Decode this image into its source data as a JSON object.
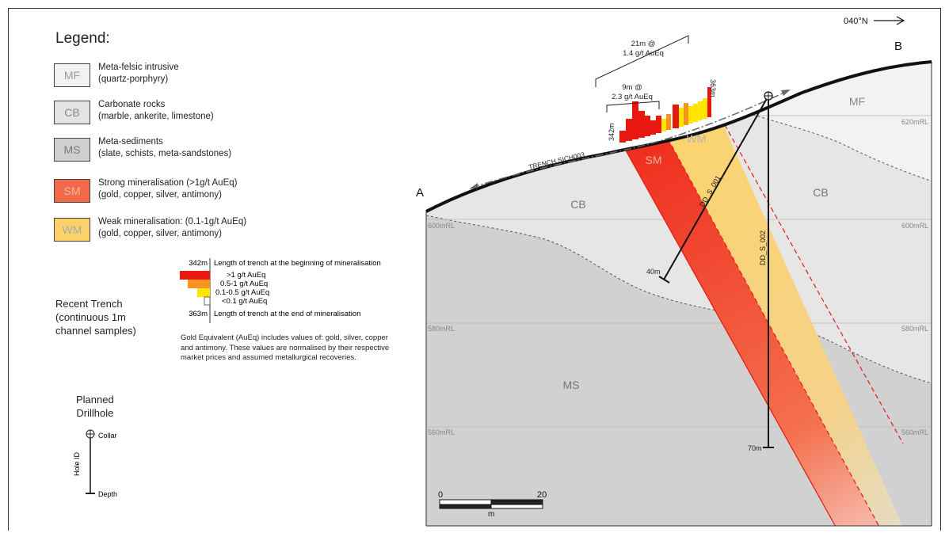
{
  "north_arrow": "040°N",
  "legend": {
    "title": "Legend:",
    "items": [
      {
        "code": "MF",
        "line1": "Meta-felsic intrusive",
        "line2": "(quartz-porphyry)",
        "color": "#f2f2f2",
        "text_color": "#9a9a9a"
      },
      {
        "code": "CB",
        "line1": "Carbonate rocks",
        "line2": "(marble, ankerite, limestone)",
        "color": "#e3e3e3",
        "text_color": "#8a8a8a"
      },
      {
        "code": "MS",
        "line1": "Meta-sediments",
        "line2": "(slate, schists, meta-sandstones)",
        "color": "#cfcfcf",
        "text_color": "#7a7a7a"
      },
      {
        "code": "SM",
        "line1": "Strong mineralisation (>1g/t AuEq)",
        "line2": "(gold, copper, silver, antimony)",
        "color": "#f26a4a",
        "text_color": "#f0b0a0"
      },
      {
        "code": "WM",
        "line1": "Weak mineralisation: (0.1-1g/t AuEq)",
        "line2": "(gold, copper, silver, antimony)",
        "color": "#fbd26a",
        "text_color": "#b0b0b0"
      }
    ]
  },
  "trench_legend": {
    "heading_lines": [
      "Recent Trench",
      "(continuous 1m",
      "channel samples)"
    ],
    "start_value": "342m",
    "start_label": "Length of trench at the beginning of mineralisation",
    "grades": [
      ">1 g/t AuEq",
      "0.5-1 g/t AuEq",
      "0.1-0.5 g/t AuEq",
      "<0.1 g/t AuEq"
    ],
    "grade_colors": [
      "#e8170f",
      "#f7931e",
      "#ffe600",
      "#ffffff"
    ],
    "end_value": "363m",
    "end_label": "Length of trench at the end of mineralisation",
    "note_lines": [
      "Gold Equivalent (AuEq) includes values of: gold, silver, copper",
      "and antimony. These values are normalised by their respective",
      "market prices and assumed metallurgical recoveries."
    ]
  },
  "drill_legend": {
    "heading_lines": [
      "Planned",
      "Drillhole"
    ],
    "collar": "Collar",
    "depth": "Depth",
    "hole_id": "Hole ID"
  },
  "section": {
    "point_a": "A",
    "point_b": "B",
    "units": {
      "mf": "MF",
      "cb_left": "CB",
      "cb_right": "CB",
      "ms": "MS",
      "sm": "SM",
      "wm": "WM"
    },
    "rl_left": [
      "600mRL",
      "580mRL",
      "560mRL"
    ],
    "rl_right": [
      "620mRL",
      "600mRL",
      "580mRL",
      "560mRL"
    ],
    "trench_name": "TRENCH SICH003",
    "trench_start": "342m",
    "trench_end": "363m",
    "intercept_outer": [
      "21m @",
      "1.4 g/t AuEq"
    ],
    "intercept_inner": [
      "9m @",
      "2.3 g/t AuEq"
    ],
    "holes": [
      {
        "id": "DD_S_001",
        "depth_label": "40m"
      },
      {
        "id": "DD_S_002",
        "depth_label": "70m"
      }
    ],
    "scale": {
      "start": "0",
      "end": "20",
      "unit": "m"
    }
  }
}
